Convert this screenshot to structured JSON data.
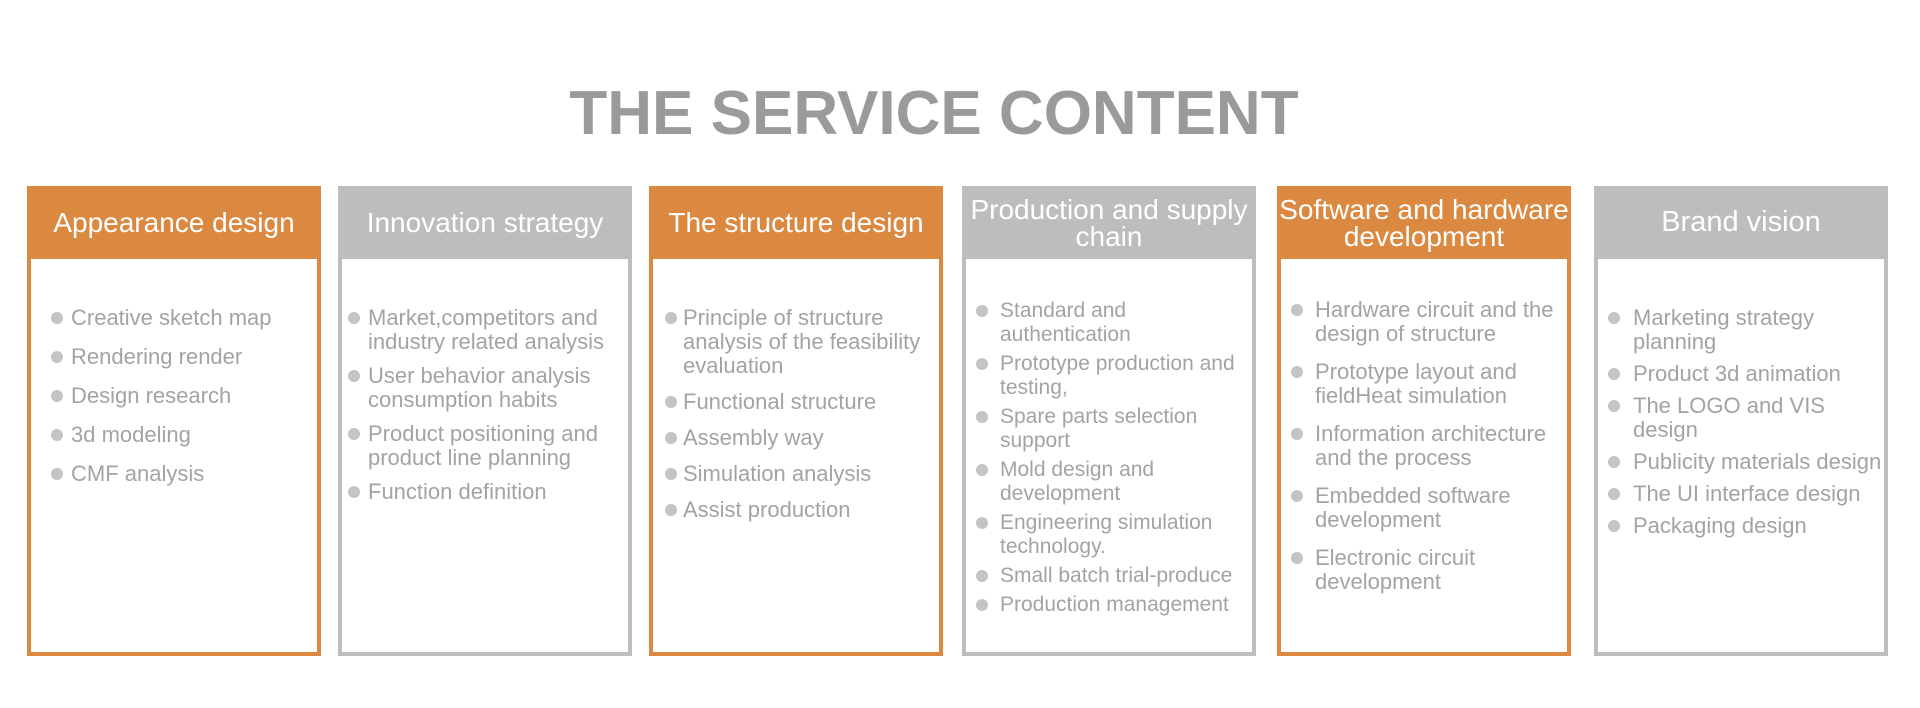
{
  "title": "THE SERVICE CONTENT",
  "colors": {
    "orange": "#db8840",
    "gray": "#bdbdbd",
    "text": "#a3a3a3",
    "title": "#9a9a9a"
  },
  "cards": [
    {
      "title": "Appearance design",
      "style": "orange",
      "items": [
        "Creative sketch map",
        "Rendering render",
        "Design research",
        "3d modeling",
        "CMF analysis"
      ]
    },
    {
      "title": "Innovation strategy",
      "style": "gray",
      "items": [
        "Market,competitors and industry related analysis",
        "User behavior analysis consumption habits",
        "Product positioning and product line planning",
        "Function definition"
      ]
    },
    {
      "title": "The structure design",
      "style": "orange",
      "items": [
        "Principle of structure analysis of the feasibility evaluation",
        "Functional structure",
        "Assembly way",
        "Simulation analysis",
        "Assist production"
      ]
    },
    {
      "title": "Production and supply chain",
      "style": "gray",
      "items": [
        "Standard and authentication",
        "Prototype production and testing,",
        "Spare parts selection support",
        "Mold design and development",
        "Engineering simulation technology.",
        "Small batch trial-produce",
        "Production management"
      ]
    },
    {
      "title": "Software and hardware development",
      "style": "orange",
      "items": [
        "Hardware circuit and the design of structure",
        "Prototype layout and fieldHeat simulation",
        "Information architecture and the process",
        "Embedded software development",
        "Electronic circuit development"
      ]
    },
    {
      "title": "Brand vision",
      "style": "gray",
      "items": [
        "Marketing strategy planning",
        "Product 3d animation",
        "The LOGO and VIS design",
        "Publicity materials design",
        "The UI interface design",
        "Packaging design"
      ]
    }
  ]
}
